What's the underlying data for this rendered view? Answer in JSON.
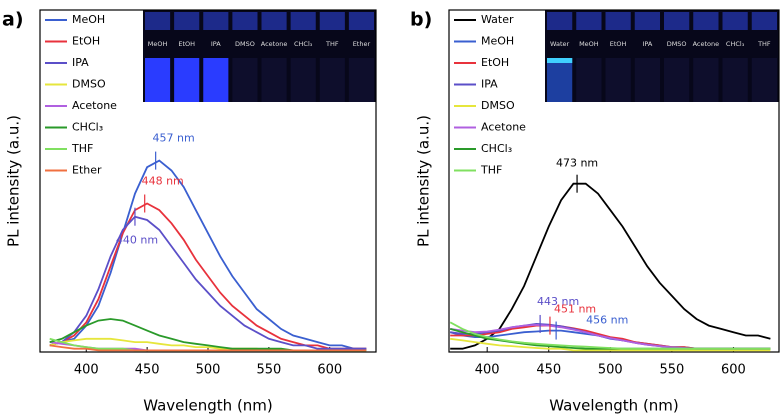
{
  "chart_data": [
    {
      "type": "line",
      "panel_label": "a)",
      "x_label": "Wavelength (nm)",
      "y_label": "PL intensity (a.u.)",
      "x": [
        370,
        380,
        390,
        400,
        410,
        420,
        430,
        440,
        450,
        460,
        470,
        480,
        490,
        500,
        510,
        520,
        530,
        540,
        550,
        560,
        570,
        580,
        590,
        600,
        610,
        620,
        630
      ],
      "xlim": [
        362,
        638
      ],
      "xticks": [
        400,
        450,
        500,
        550,
        600
      ],
      "ylim": [
        0,
        1
      ],
      "legend": "upper left",
      "inset_labels": [
        "MeOH",
        "EtOH",
        "IPA",
        "DMSO",
        "Acetone",
        "CHCl₃",
        "THF",
        "Ether"
      ],
      "series": [
        {
          "name": "MeOH",
          "color": "#3a5fd0",
          "values": [
            0.02,
            0.03,
            0.04,
            0.08,
            0.14,
            0.24,
            0.36,
            0.48,
            0.56,
            0.58,
            0.55,
            0.5,
            0.43,
            0.36,
            0.29,
            0.23,
            0.18,
            0.13,
            0.1,
            0.07,
            0.05,
            0.04,
            0.03,
            0.02,
            0.02,
            0.01,
            0.01
          ]
        },
        {
          "name": "EtOH",
          "color": "#e8323c",
          "values": [
            0.02,
            0.03,
            0.05,
            0.09,
            0.16,
            0.26,
            0.36,
            0.43,
            0.45,
            0.43,
            0.39,
            0.34,
            0.28,
            0.23,
            0.18,
            0.14,
            0.11,
            0.08,
            0.06,
            0.04,
            0.03,
            0.02,
            0.02,
            0.01,
            0.01,
            0.01,
            0.01
          ]
        },
        {
          "name": "IPA",
          "color": "#5b4fc8",
          "values": [
            0.02,
            0.03,
            0.06,
            0.11,
            0.19,
            0.29,
            0.37,
            0.41,
            0.4,
            0.37,
            0.32,
            0.27,
            0.22,
            0.18,
            0.14,
            0.11,
            0.08,
            0.06,
            0.04,
            0.03,
            0.02,
            0.02,
            0.01,
            0.01,
            0.01,
            0.01,
            0.01
          ]
        },
        {
          "name": "DMSO",
          "color": "#e6e63c",
          "values": [
            0.02,
            0.03,
            0.035,
            0.04,
            0.04,
            0.04,
            0.035,
            0.03,
            0.03,
            0.025,
            0.02,
            0.02,
            0.015,
            0.015,
            0.01,
            0.01,
            0.01,
            0.01,
            0.005,
            0.005,
            0.005,
            0.005,
            0.005,
            0.005,
            0.005,
            0.005,
            0.005
          ]
        },
        {
          "name": "Acetone",
          "color": "#b060e0",
          "values": [
            0.03,
            0.025,
            0.02,
            0.015,
            0.01,
            0.01,
            0.01,
            0.01,
            0.005,
            0.005,
            0.005,
            0.005,
            0.005,
            0.005,
            0.005,
            0.005,
            0.005,
            0.005,
            0.005,
            0.005,
            0.005,
            0.005,
            0.005,
            0.005,
            0.005,
            0.005,
            0.005
          ]
        },
        {
          "name": "CHCl₃",
          "color": "#2a9a2a",
          "values": [
            0.03,
            0.04,
            0.06,
            0.08,
            0.095,
            0.1,
            0.095,
            0.08,
            0.065,
            0.05,
            0.04,
            0.03,
            0.025,
            0.02,
            0.015,
            0.01,
            0.01,
            0.01,
            0.01,
            0.01,
            0.005,
            0.005,
            0.005,
            0.005,
            0.005,
            0.005,
            0.005
          ]
        },
        {
          "name": "THF",
          "color": "#80e060",
          "values": [
            0.04,
            0.03,
            0.02,
            0.015,
            0.01,
            0.01,
            0.01,
            0.005,
            0.005,
            0.005,
            0.005,
            0.005,
            0.005,
            0.005,
            0.005,
            0.005,
            0.005,
            0.005,
            0.005,
            0.005,
            0.005,
            0.005,
            0.005,
            0.005,
            0.005,
            0.005,
            0.005
          ]
        },
        {
          "name": "Ether",
          "color": "#f07040",
          "values": [
            0.02,
            0.015,
            0.01,
            0.01,
            0.005,
            0.005,
            0.005,
            0.005,
            0.005,
            0.005,
            0.005,
            0.005,
            0.005,
            0.005,
            0.005,
            0.005,
            0.005,
            0.005,
            0.005,
            0.005,
            0.005,
            0.005,
            0.005,
            0.005,
            0.005,
            0.005,
            0.005
          ]
        }
      ],
      "annotations": [
        {
          "text": "457 nm",
          "x": 457,
          "y": 0.58,
          "color": "#3a5fd0",
          "anchor": "above"
        },
        {
          "text": "448 nm",
          "x": 448,
          "y": 0.45,
          "color": "#e8323c",
          "anchor": "above"
        },
        {
          "text": "440 nm",
          "x": 440,
          "y": 0.41,
          "color": "#5b4fc8",
          "anchor": "below"
        }
      ]
    },
    {
      "type": "line",
      "panel_label": "b)",
      "x_label": "Wavelength (nm)",
      "y_label": "PL intensity (a.u.)",
      "x": [
        370,
        380,
        390,
        400,
        410,
        420,
        430,
        440,
        450,
        460,
        470,
        480,
        490,
        500,
        510,
        520,
        530,
        540,
        550,
        560,
        570,
        580,
        590,
        600,
        610,
        620,
        630
      ],
      "xlim": [
        369,
        637
      ],
      "xticks": [
        400,
        450,
        500,
        550,
        600
      ],
      "ylim": [
        0,
        1
      ],
      "legend": "upper left",
      "inset_labels": [
        "Water",
        "MeOH",
        "EtOH",
        "IPA",
        "DMSO",
        "Acetone",
        "CHCl₃",
        "THF"
      ],
      "series": [
        {
          "name": "Water",
          "color": "#000000",
          "values": [
            0.01,
            0.01,
            0.02,
            0.04,
            0.07,
            0.13,
            0.2,
            0.29,
            0.38,
            0.46,
            0.51,
            0.51,
            0.48,
            0.43,
            0.38,
            0.32,
            0.26,
            0.21,
            0.17,
            0.13,
            0.1,
            0.08,
            0.07,
            0.06,
            0.05,
            0.05,
            0.04
          ]
        },
        {
          "name": "MeOH",
          "color": "#3a5fd0",
          "values": [
            0.06,
            0.05,
            0.045,
            0.045,
            0.05,
            0.055,
            0.06,
            0.062,
            0.065,
            0.065,
            0.06,
            0.055,
            0.05,
            0.04,
            0.035,
            0.03,
            0.025,
            0.02,
            0.015,
            0.015,
            0.01,
            0.01,
            0.01,
            0.01,
            0.01,
            0.01,
            0.01
          ]
        },
        {
          "name": "EtOH",
          "color": "#e8323c",
          "values": [
            0.05,
            0.05,
            0.05,
            0.055,
            0.06,
            0.07,
            0.075,
            0.08,
            0.08,
            0.078,
            0.072,
            0.065,
            0.055,
            0.045,
            0.04,
            0.03,
            0.025,
            0.02,
            0.015,
            0.015,
            0.01,
            0.01,
            0.01,
            0.01,
            0.01,
            0.01,
            0.01
          ]
        },
        {
          "name": "IPA",
          "color": "#5b4fc8",
          "values": [
            0.06,
            0.055,
            0.055,
            0.06,
            0.065,
            0.075,
            0.08,
            0.085,
            0.083,
            0.078,
            0.07,
            0.06,
            0.05,
            0.042,
            0.035,
            0.028,
            0.022,
            0.018,
            0.014,
            0.012,
            0.01,
            0.01,
            0.01,
            0.01,
            0.01,
            0.01,
            0.01
          ]
        },
        {
          "name": "DMSO",
          "color": "#e6e63c",
          "values": [
            0.04,
            0.035,
            0.03,
            0.025,
            0.02,
            0.018,
            0.015,
            0.012,
            0.01,
            0.01,
            0.005,
            0.005,
            0.005,
            0.005,
            0.005,
            0.005,
            0.005,
            0.005,
            0.005,
            0.005,
            0.005,
            0.005,
            0.005,
            0.005,
            0.005,
            0.005,
            0.005
          ]
        },
        {
          "name": "Acetone",
          "color": "#b060e0",
          "values": [
            0.07,
            0.065,
            0.06,
            0.062,
            0.068,
            0.075,
            0.08,
            0.082,
            0.08,
            0.075,
            0.068,
            0.06,
            0.05,
            0.042,
            0.035,
            0.028,
            0.022,
            0.018,
            0.014,
            0.012,
            0.01,
            0.01,
            0.01,
            0.01,
            0.01,
            0.01,
            0.01
          ]
        },
        {
          "name": "CHCl₃",
          "color": "#2a9a2a",
          "values": [
            0.07,
            0.06,
            0.05,
            0.04,
            0.035,
            0.03,
            0.025,
            0.02,
            0.018,
            0.015,
            0.012,
            0.01,
            0.01,
            0.01,
            0.01,
            0.01,
            0.01,
            0.01,
            0.01,
            0.01,
            0.01,
            0.01,
            0.01,
            0.01,
            0.01,
            0.01,
            0.01
          ]
        },
        {
          "name": "THF",
          "color": "#80e060",
          "values": [
            0.09,
            0.07,
            0.055,
            0.045,
            0.038,
            0.032,
            0.028,
            0.025,
            0.022,
            0.02,
            0.018,
            0.016,
            0.014,
            0.012,
            0.01,
            0.01,
            0.01,
            0.01,
            0.01,
            0.01,
            0.01,
            0.01,
            0.01,
            0.01,
            0.01,
            0.01,
            0.01
          ]
        }
      ],
      "annotations": [
        {
          "text": "473 nm",
          "x": 473,
          "y": 0.51,
          "color": "#000000",
          "anchor": "left"
        },
        {
          "text": "443 nm",
          "x": 443,
          "y": 0.085,
          "color": "#5b4fc8",
          "anchor": "above"
        },
        {
          "text": "451 nm",
          "x": 451,
          "y": 0.08,
          "color": "#e8323c",
          "anchor": "right"
        },
        {
          "text": "456 nm",
          "x": 456,
          "y": 0.065,
          "color": "#3a5fd0",
          "anchor": "far-right"
        }
      ]
    }
  ]
}
